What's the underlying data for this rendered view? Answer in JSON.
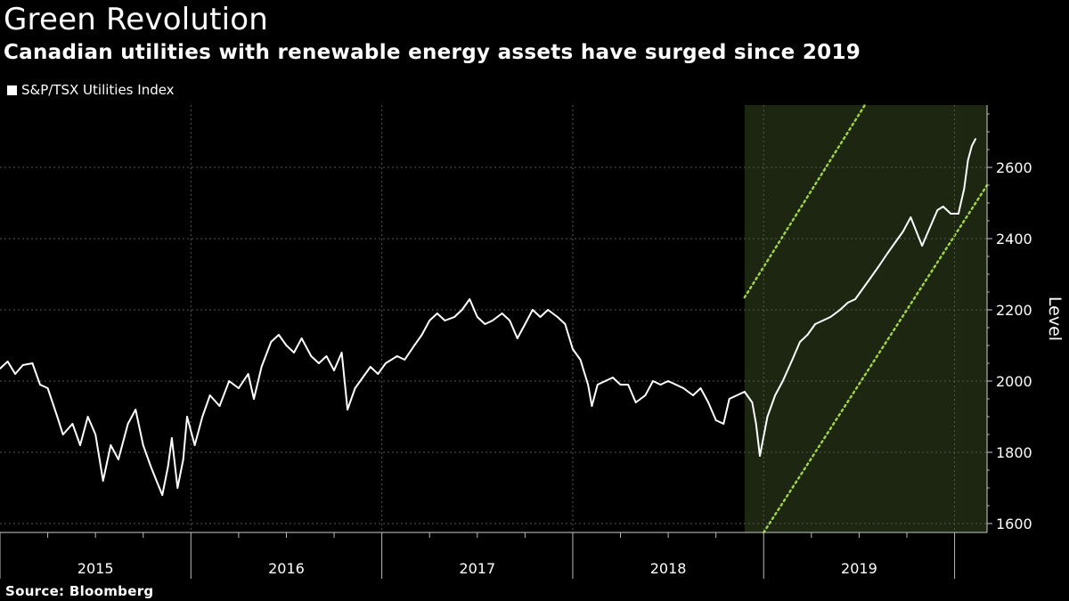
{
  "header": {
    "title": "Green Revolution",
    "subtitle": "Canadian utilities with renewable energy assets have surged since 2019"
  },
  "legend": {
    "label": "S&P/TSX Utilities Index"
  },
  "source": "Source: Bloomberg",
  "colors": {
    "background": "#000000",
    "line": "#ffffff",
    "band_fill": "#1c2610",
    "band_edge": "#9fd44a",
    "grid": "#555555"
  },
  "chart_data": {
    "type": "line",
    "title": "Green Revolution",
    "subtitle": "Canadian utilities with renewable energy assets have surged since 2019",
    "ylabel": "Level",
    "xlabel": "",
    "ylim": [
      1575,
      2775
    ],
    "xlim": [
      2015.0,
      2020.17
    ],
    "yticks": [
      1600,
      1800,
      2000,
      2200,
      2400,
      2600
    ],
    "year_labels": [
      "2015",
      "2016",
      "2017",
      "2018",
      "2019"
    ],
    "legend_position": "top-left",
    "grid": true,
    "series": [
      {
        "name": "S&P/TSX Utilities Index",
        "points": [
          [
            2015.0,
            2035
          ],
          [
            2015.04,
            2055
          ],
          [
            2015.08,
            2020
          ],
          [
            2015.12,
            2045
          ],
          [
            2015.17,
            2050
          ],
          [
            2015.21,
            1990
          ],
          [
            2015.25,
            1980
          ],
          [
            2015.3,
            1900
          ],
          [
            2015.33,
            1850
          ],
          [
            2015.38,
            1880
          ],
          [
            2015.42,
            1820
          ],
          [
            2015.46,
            1900
          ],
          [
            2015.5,
            1850
          ],
          [
            2015.54,
            1720
          ],
          [
            2015.58,
            1820
          ],
          [
            2015.62,
            1780
          ],
          [
            2015.67,
            1880
          ],
          [
            2015.71,
            1920
          ],
          [
            2015.75,
            1820
          ],
          [
            2015.79,
            1760
          ],
          [
            2015.82,
            1720
          ],
          [
            2015.85,
            1680
          ],
          [
            2015.88,
            1760
          ],
          [
            2015.9,
            1840
          ],
          [
            2015.93,
            1700
          ],
          [
            2015.96,
            1780
          ],
          [
            2015.98,
            1900
          ],
          [
            2016.02,
            1820
          ],
          [
            2016.06,
            1900
          ],
          [
            2016.1,
            1960
          ],
          [
            2016.15,
            1930
          ],
          [
            2016.2,
            2000
          ],
          [
            2016.25,
            1980
          ],
          [
            2016.3,
            2020
          ],
          [
            2016.33,
            1950
          ],
          [
            2016.37,
            2040
          ],
          [
            2016.42,
            2110
          ],
          [
            2016.46,
            2130
          ],
          [
            2016.5,
            2100
          ],
          [
            2016.54,
            2080
          ],
          [
            2016.58,
            2120
          ],
          [
            2016.63,
            2070
          ],
          [
            2016.67,
            2050
          ],
          [
            2016.71,
            2070
          ],
          [
            2016.75,
            2030
          ],
          [
            2016.79,
            2080
          ],
          [
            2016.82,
            1920
          ],
          [
            2016.86,
            1980
          ],
          [
            2016.9,
            2010
          ],
          [
            2016.94,
            2040
          ],
          [
            2016.98,
            2020
          ],
          [
            2017.02,
            2050
          ],
          [
            2017.08,
            2070
          ],
          [
            2017.12,
            2060
          ],
          [
            2017.17,
            2100
          ],
          [
            2017.21,
            2130
          ],
          [
            2017.25,
            2170
          ],
          [
            2017.29,
            2190
          ],
          [
            2017.33,
            2170
          ],
          [
            2017.38,
            2180
          ],
          [
            2017.42,
            2200
          ],
          [
            2017.46,
            2230
          ],
          [
            2017.5,
            2180
          ],
          [
            2017.54,
            2160
          ],
          [
            2017.58,
            2170
          ],
          [
            2017.63,
            2190
          ],
          [
            2017.67,
            2170
          ],
          [
            2017.71,
            2120
          ],
          [
            2017.75,
            2160
          ],
          [
            2017.79,
            2200
          ],
          [
            2017.83,
            2180
          ],
          [
            2017.87,
            2200
          ],
          [
            2017.92,
            2180
          ],
          [
            2017.96,
            2160
          ],
          [
            2018.0,
            2090
          ],
          [
            2018.04,
            2060
          ],
          [
            2018.08,
            1990
          ],
          [
            2018.1,
            1930
          ],
          [
            2018.13,
            1990
          ],
          [
            2018.17,
            2000
          ],
          [
            2018.21,
            2010
          ],
          [
            2018.25,
            1990
          ],
          [
            2018.29,
            1990
          ],
          [
            2018.33,
            1940
          ],
          [
            2018.38,
            1960
          ],
          [
            2018.42,
            2000
          ],
          [
            2018.46,
            1990
          ],
          [
            2018.5,
            2000
          ],
          [
            2018.54,
            1990
          ],
          [
            2018.58,
            1980
          ],
          [
            2018.63,
            1960
          ],
          [
            2018.67,
            1980
          ],
          [
            2018.71,
            1940
          ],
          [
            2018.75,
            1890
          ],
          [
            2018.79,
            1880
          ],
          [
            2018.82,
            1950
          ],
          [
            2018.86,
            1960
          ],
          [
            2018.9,
            1970
          ],
          [
            2018.94,
            1940
          ],
          [
            2018.96,
            1880
          ],
          [
            2018.98,
            1790
          ],
          [
            2019.02,
            1900
          ],
          [
            2019.06,
            1960
          ],
          [
            2019.1,
            2000
          ],
          [
            2019.15,
            2060
          ],
          [
            2019.19,
            2110
          ],
          [
            2019.23,
            2130
          ],
          [
            2019.27,
            2160
          ],
          [
            2019.31,
            2170
          ],
          [
            2019.35,
            2180
          ],
          [
            2019.4,
            2200
          ],
          [
            2019.44,
            2220
          ],
          [
            2019.48,
            2230
          ],
          [
            2019.52,
            2260
          ],
          [
            2019.56,
            2290
          ],
          [
            2019.6,
            2320
          ],
          [
            2019.65,
            2360
          ],
          [
            2019.69,
            2390
          ],
          [
            2019.73,
            2420
          ],
          [
            2019.77,
            2460
          ],
          [
            2019.8,
            2420
          ],
          [
            2019.83,
            2380
          ],
          [
            2019.87,
            2430
          ],
          [
            2019.91,
            2480
          ],
          [
            2019.94,
            2490
          ],
          [
            2019.98,
            2470
          ],
          [
            2020.02,
            2470
          ],
          [
            2020.05,
            2540
          ],
          [
            2020.07,
            2620
          ],
          [
            2020.09,
            2660
          ],
          [
            2020.11,
            2680
          ]
        ]
      }
    ],
    "trend_band": {
      "start_x": 2018.9,
      "end_x": 2020.17,
      "upper_line": [
        [
          2018.9,
          2235
        ],
        [
          2019.53,
          2775
        ]
      ],
      "lower_line": [
        [
          2019.0,
          1575
        ],
        [
          2020.17,
          2550
        ]
      ]
    }
  }
}
